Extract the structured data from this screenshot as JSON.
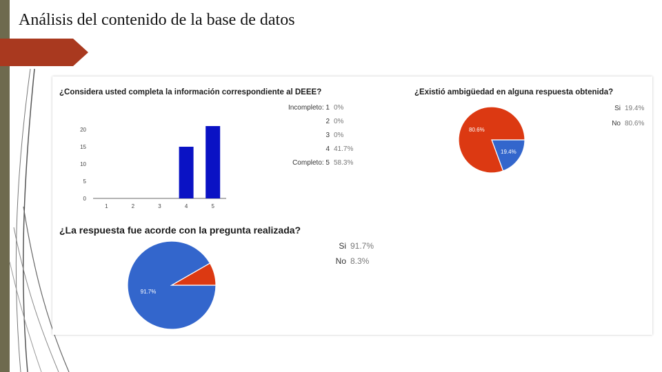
{
  "slide_title": "Análisis del contenido de la base de datos",
  "colors": {
    "bar": "#0a12c4",
    "red": "#dc3912",
    "blue": "#3366cc",
    "accent": "#a9391f",
    "strip": "#6e6a4e"
  },
  "chart_data": [
    {
      "type": "bar",
      "title": "¿Considera usted completa la información correspondiente al DEEE?",
      "categories": [
        "1",
        "2",
        "3",
        "4",
        "5"
      ],
      "values": [
        0,
        0,
        0,
        15,
        21
      ],
      "ylim": [
        0,
        20
      ],
      "yticks": [
        "0",
        "5",
        "10",
        "15",
        "20"
      ],
      "legend": [
        {
          "label": "Incompleto: 1",
          "pct": "0%"
        },
        {
          "label": "2",
          "pct": "0%"
        },
        {
          "label": "3",
          "pct": "0%"
        },
        {
          "label": "4",
          "pct": "41.7%"
        },
        {
          "label": "Completo: 5",
          "pct": "58.3%"
        }
      ]
    },
    {
      "type": "pie",
      "title": "¿Existió ambigüedad en alguna respuesta obtenida?",
      "slices": [
        {
          "label": "Si",
          "value": 19.4,
          "pct": "19.4%",
          "slice_label": "19.4%"
        },
        {
          "label": "No",
          "value": 80.6,
          "pct": "80.6%",
          "slice_label": "80.6%"
        }
      ]
    },
    {
      "type": "pie",
      "title": "¿La respuesta fue acorde con la pregunta realizada?",
      "slices": [
        {
          "label": "Si",
          "value": 91.7,
          "pct": "91.7%",
          "slice_label": "91.7%"
        },
        {
          "label": "No",
          "value": 8.3,
          "pct": "8.3%",
          "slice_label": ""
        }
      ]
    }
  ]
}
